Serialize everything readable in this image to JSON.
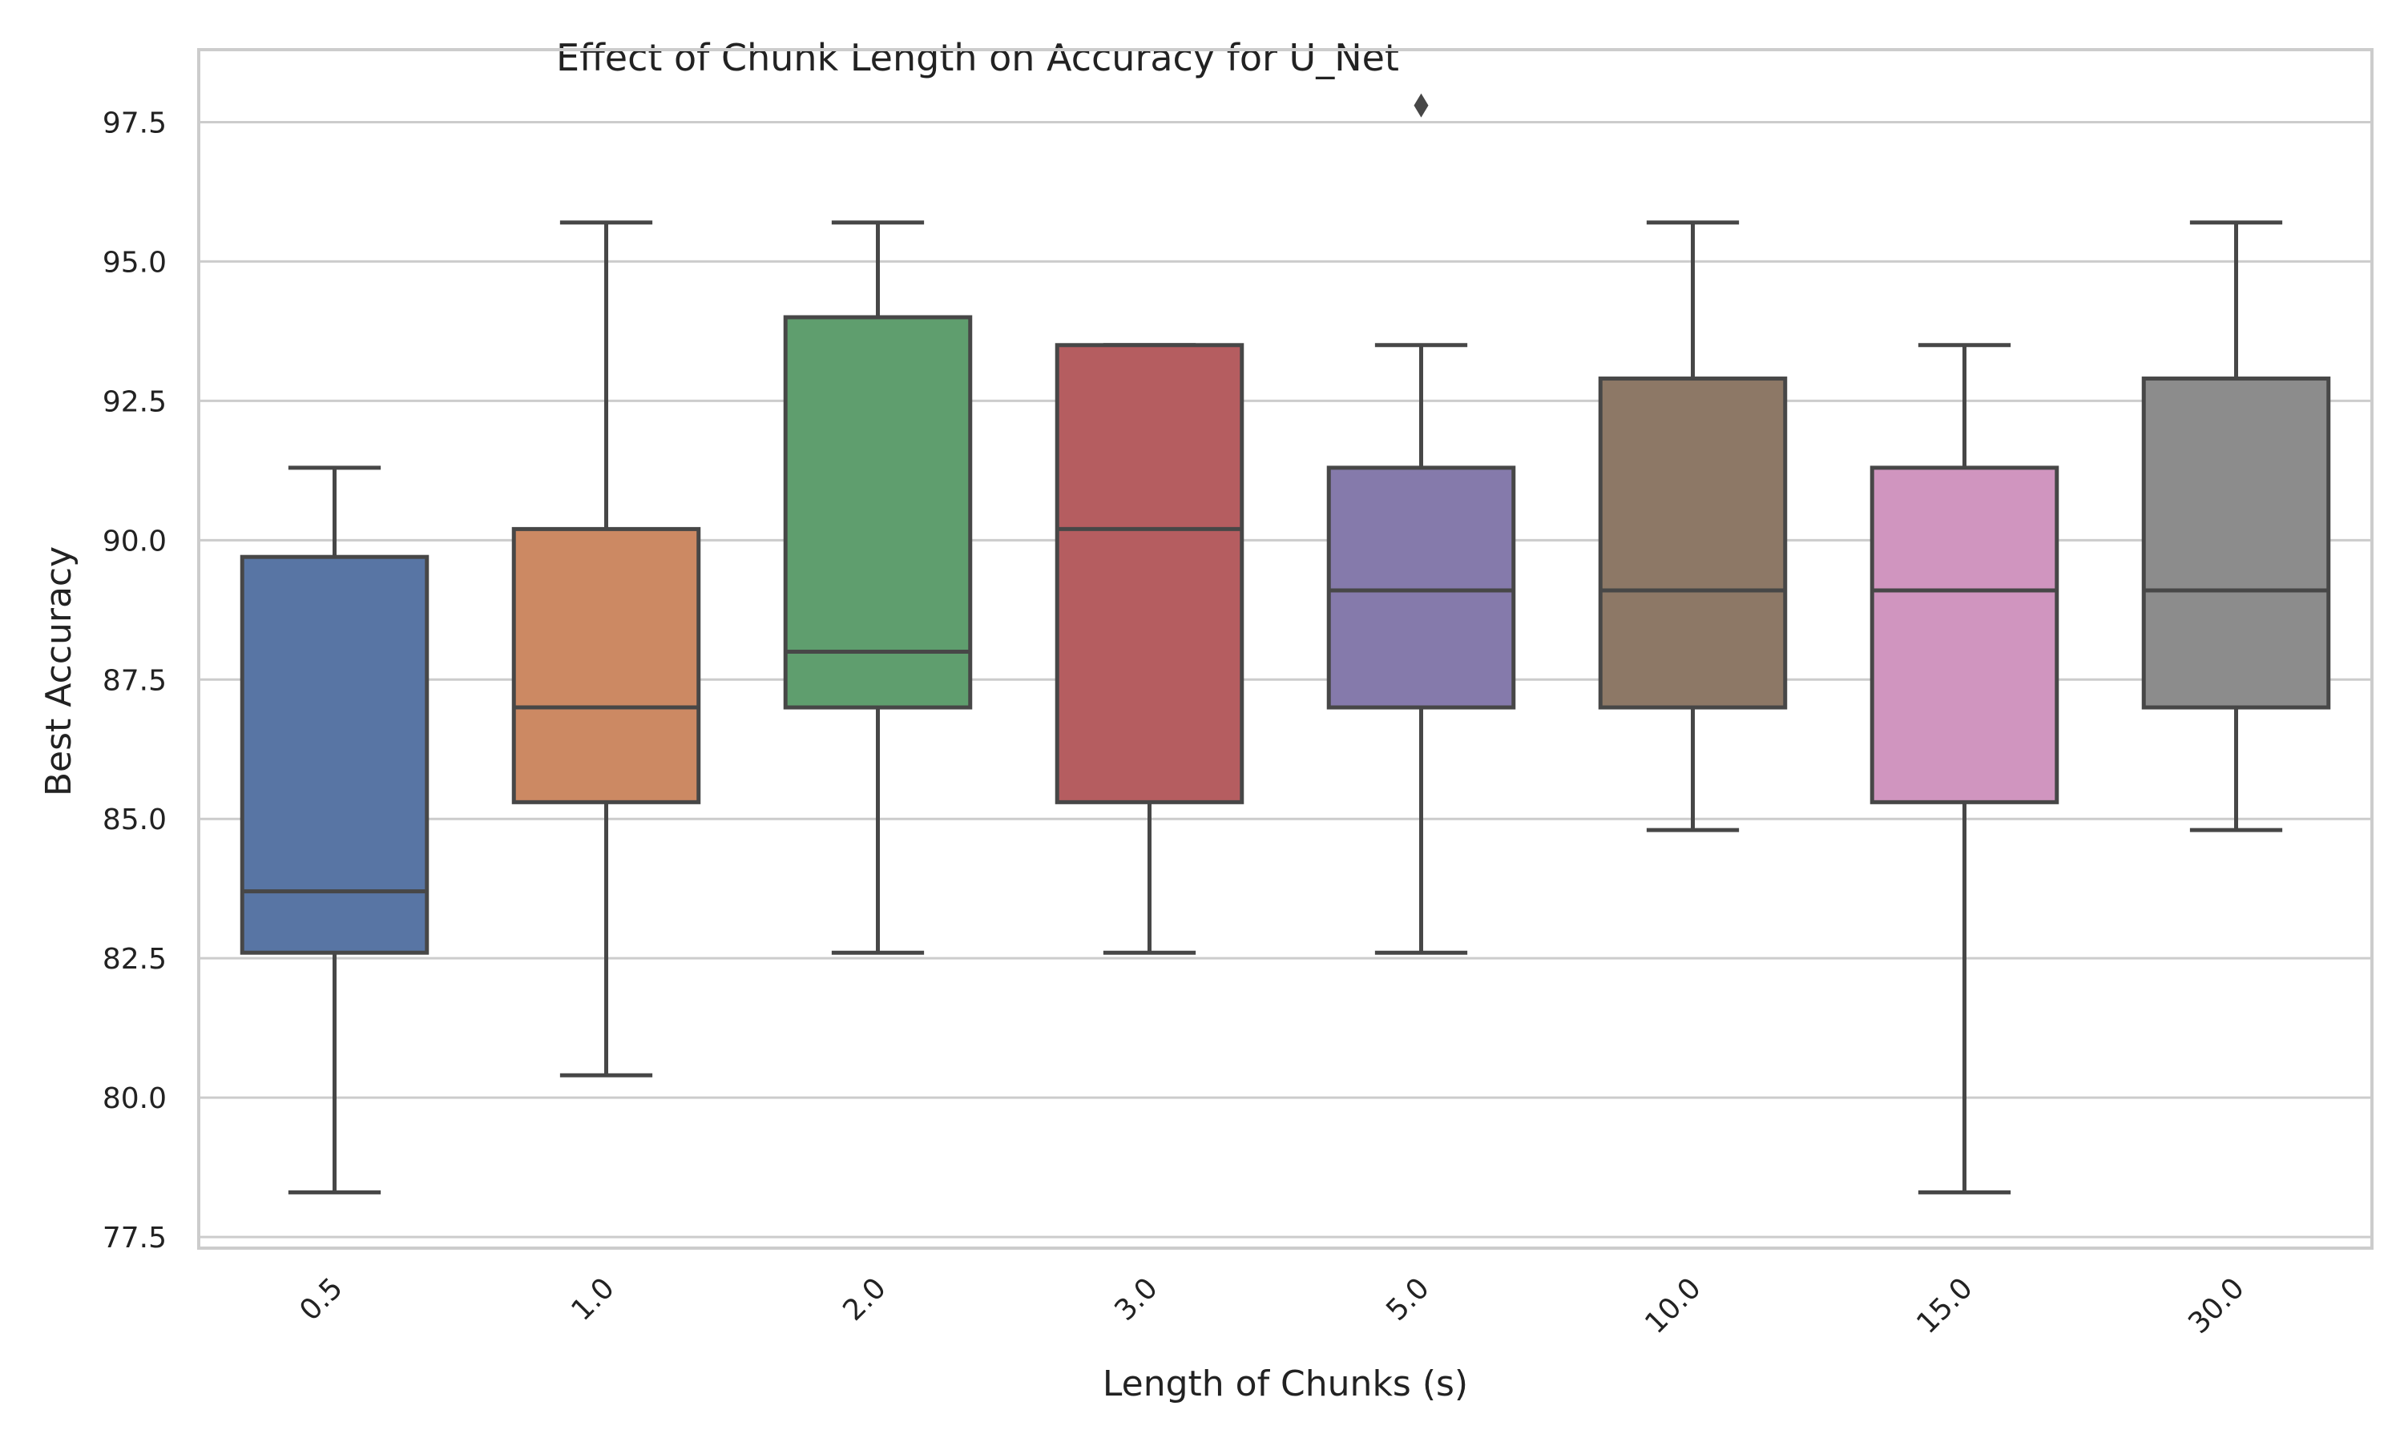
{
  "chart_data": {
    "type": "box",
    "title": "Effect of Chunk Length on Accuracy for U_Net",
    "xlabel": "Length of Chunks (s)",
    "ylabel": "Best Accuracy",
    "ylim": [
      77.3,
      98.8
    ],
    "yticks": [
      77.5,
      80.0,
      82.5,
      85.0,
      87.5,
      90.0,
      92.5,
      95.0,
      97.5
    ],
    "ytick_labels": [
      "77.5",
      "80.0",
      "82.5",
      "85.0",
      "87.5",
      "90.0",
      "92.5",
      "95.0",
      "97.5"
    ],
    "grid": true,
    "categories": [
      "0.5",
      "1.0",
      "2.0",
      "3.0",
      "5.0",
      "10.0",
      "15.0",
      "30.0"
    ],
    "boxes": [
      {
        "category": "0.5",
        "whisker_low": 78.3,
        "q1": 82.6,
        "median": 83.7,
        "q3": 89.7,
        "whisker_high": 91.3,
        "outliers": [],
        "color": "#5875a4"
      },
      {
        "category": "1.0",
        "whisker_low": 80.4,
        "q1": 85.3,
        "median": 87.0,
        "q3": 90.2,
        "whisker_high": 95.7,
        "outliers": [],
        "color": "#cc8963"
      },
      {
        "category": "2.0",
        "whisker_low": 82.6,
        "q1": 87.0,
        "median": 88.0,
        "q3": 94.0,
        "whisker_high": 95.7,
        "outliers": [],
        "color": "#5f9e6e"
      },
      {
        "category": "3.0",
        "whisker_low": 82.6,
        "q1": 85.3,
        "median": 90.2,
        "q3": 93.5,
        "whisker_high": 93.5,
        "outliers": [],
        "color": "#b55d60"
      },
      {
        "category": "5.0",
        "whisker_low": 82.6,
        "q1": 87.0,
        "median": 89.1,
        "q3": 91.3,
        "whisker_high": 93.5,
        "outliers": [
          97.8
        ],
        "color": "#857aab"
      },
      {
        "category": "10.0",
        "whisker_low": 84.8,
        "q1": 87.0,
        "median": 89.1,
        "q3": 92.9,
        "whisker_high": 95.7,
        "outliers": [],
        "color": "#8d7866"
      },
      {
        "category": "15.0",
        "whisker_low": 78.3,
        "q1": 85.3,
        "median": 89.1,
        "q3": 91.3,
        "whisker_high": 93.5,
        "outliers": [],
        "color": "#d095bf"
      },
      {
        "category": "30.0",
        "whisker_low": 84.8,
        "q1": 87.0,
        "median": 89.1,
        "q3": 92.9,
        "whisker_high": 95.7,
        "outliers": [],
        "color": "#8c8c8c"
      }
    ],
    "line_color": "#474747",
    "grid_color": "#cccccc",
    "frame_color": "#cccccc"
  }
}
